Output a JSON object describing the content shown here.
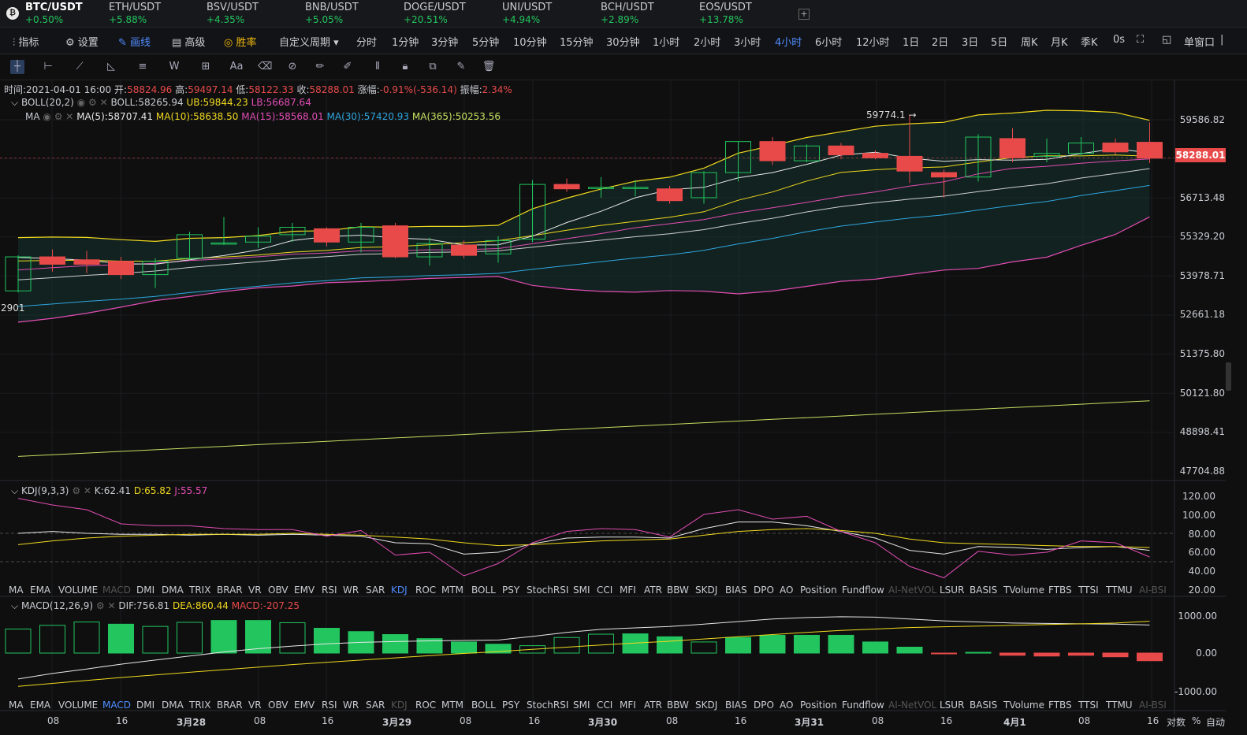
{
  "tickers": [
    {
      "symbol": "BTC/USDT",
      "change": "+0.50%",
      "active": true
    },
    {
      "symbol": "ETH/USDT",
      "change": "+5.88%"
    },
    {
      "symbol": "BSV/USDT",
      "change": "+4.35%"
    },
    {
      "symbol": "BNB/USDT",
      "change": "+5.05%"
    },
    {
      "symbol": "DOGE/USDT",
      "change": "+20.51%"
    },
    {
      "symbol": "UNI/USDT",
      "change": "+4.94%"
    },
    {
      "symbol": "BCH/USDT",
      "change": "+2.89%"
    },
    {
      "symbol": "EOS/USDT",
      "change": "+13.78%"
    }
  ],
  "toolbar": {
    "indicators": "指标",
    "settings": "设置",
    "draw": "画线",
    "advanced": "高级",
    "winrate": "胜率",
    "custom_period": "自定义周期",
    "periods": [
      "分时",
      "1分钟",
      "3分钟",
      "5分钟",
      "10分钟",
      "15分钟",
      "30分钟",
      "1小时",
      "2小时",
      "3小时",
      "4小时",
      "6小时",
      "12小时",
      "1日",
      "2日",
      "3日",
      "5日",
      "周K",
      "月K",
      "季K"
    ],
    "active_period": "4小时",
    "zero_s": "0s",
    "single_window": "单窗口"
  },
  "info": {
    "time_label": "时间:",
    "time": "2021-04-01 16:00",
    "open_label": "开:",
    "open": "58824.96",
    "high_label": "高:",
    "high": "59497.14",
    "low_label": "低:",
    "low": "58122.33",
    "close_label": "收:",
    "close": "58288.01",
    "chg_label": "涨幅:",
    "chg": "-0.91%(-536.14)",
    "amp_label": "振幅:",
    "amp": "2.34%"
  },
  "boll": {
    "name": "BOLL(20,2)",
    "mid": "BOLL:58265.94",
    "ub": "UB:59844.23",
    "lb": "LB:56687.64"
  },
  "ma": {
    "name": "MA",
    "ma5": "MA(5):58707.41",
    "ma10": "MA(10):58638.50",
    "ma15": "MA(15):58568.01",
    "ma30": "MA(30):57420.93",
    "ma365": "MA(365):50253.56"
  },
  "kdj": {
    "name": "KDJ(9,3,3)",
    "k": "K:62.41",
    "d": "D:65.82",
    "j": "J:55.57"
  },
  "macd": {
    "name": "MACD(12,26,9)",
    "dif": "DIF:756.81",
    "dea": "DEA:860.44",
    "macd": "MACD:-207.25"
  },
  "price_axis": [
    "59586.82",
    "56713.48",
    "55329.20",
    "53978.71",
    "52661.18",
    "51375.80",
    "50121.80",
    "48898.41",
    "47704.88"
  ],
  "current_price": "58288.01",
  "max_label": "59774.1 →",
  "left_label": "2901",
  "kdj_axis": [
    "120.00",
    "100.00",
    "80.00",
    "60.00",
    "40.00",
    "20.00"
  ],
  "macd_axis": [
    "1000.00",
    "0.00",
    "-1000.00"
  ],
  "indicator_tabs": [
    "MA",
    "EMA",
    "VOLUME",
    "MACD",
    "DMI",
    "DMA",
    "TRIX",
    "BRAR",
    "VR",
    "OBV",
    "EMV",
    "RSI",
    "WR",
    "SAR",
    "KDJ",
    "ROC",
    "MTM",
    "BOLL",
    "PSY",
    "StochRSI",
    "SMI",
    "CCI",
    "MFI",
    "ATR",
    "BBW",
    "SKDJ",
    "BIAS",
    "DPO",
    "AO",
    "Position",
    "Fundflow",
    "AI-NetVOL",
    "LSUR",
    "BASIS",
    "TVolume",
    "FTBS",
    "TTSI",
    "TTMU",
    "AI-BSI"
  ],
  "date_labels": [
    "08",
    "16",
    "3月28",
    "08",
    "16",
    "3月29",
    "08",
    "16",
    "3月30",
    "08",
    "16",
    "3月31",
    "08",
    "16",
    "4月1",
    "08",
    "16"
  ],
  "bottom_right": {
    "log": "对数",
    "pct": "%",
    "auto": "自动"
  },
  "colors": {
    "up": "#22c55e",
    "down": "#e84a4a",
    "ma5": "#e8e8e8",
    "ma10": "#f0d91e",
    "ma15": "#e24db3",
    "ma30": "#2fa6e0",
    "ma365": "#c5e05f"
  },
  "chart_data": {
    "type": "candlestick",
    "candles": [
      {
        "o": 53800,
        "h": 55000,
        "l": 53750,
        "c": 54950
      },
      {
        "o": 54950,
        "h": 55200,
        "l": 54450,
        "c": 54700
      },
      {
        "o": 54850,
        "h": 55150,
        "l": 54400,
        "c": 54700
      },
      {
        "o": 54800,
        "h": 54950,
        "l": 54200,
        "c": 54350
      },
      {
        "o": 54350,
        "h": 54900,
        "l": 53900,
        "c": 54800
      },
      {
        "o": 54900,
        "h": 55800,
        "l": 54850,
        "c": 55700
      },
      {
        "o": 55400,
        "h": 56300,
        "l": 55350,
        "c": 55420
      },
      {
        "o": 55450,
        "h": 55950,
        "l": 55250,
        "c": 55650
      },
      {
        "o": 55700,
        "h": 56100,
        "l": 55450,
        "c": 55950
      },
      {
        "o": 55900,
        "h": 55950,
        "l": 55300,
        "c": 55450
      },
      {
        "o": 55450,
        "h": 56100,
        "l": 55100,
        "c": 55950
      },
      {
        "o": 56000,
        "h": 56100,
        "l": 54900,
        "c": 54950
      },
      {
        "o": 54950,
        "h": 55600,
        "l": 54650,
        "c": 55400
      },
      {
        "o": 55350,
        "h": 55500,
        "l": 54900,
        "c": 55000
      },
      {
        "o": 55050,
        "h": 55650,
        "l": 54750,
        "c": 55500
      },
      {
        "o": 55550,
        "h": 57550,
        "l": 55450,
        "c": 57400
      },
      {
        "o": 57400,
        "h": 57600,
        "l": 57150,
        "c": 57250
      },
      {
        "o": 57300,
        "h": 57650,
        "l": 56950,
        "c": 57300
      },
      {
        "o": 57300,
        "h": 57550,
        "l": 57000,
        "c": 57300
      },
      {
        "o": 57250,
        "h": 57350,
        "l": 56750,
        "c": 56850
      },
      {
        "o": 56950,
        "h": 57850,
        "l": 56750,
        "c": 57800
      },
      {
        "o": 57800,
        "h": 58850,
        "l": 57500,
        "c": 58850
      },
      {
        "o": 58850,
        "h": 59000,
        "l": 58050,
        "c": 58200
      },
      {
        "o": 58200,
        "h": 58750,
        "l": 58150,
        "c": 58700
      },
      {
        "o": 58700,
        "h": 58800,
        "l": 58250,
        "c": 58400
      },
      {
        "o": 58450,
        "h": 58550,
        "l": 58250,
        "c": 58300
      },
      {
        "o": 58350,
        "h": 59750,
        "l": 57450,
        "c": 57850
      },
      {
        "o": 57800,
        "h": 57900,
        "l": 56950,
        "c": 57650
      },
      {
        "o": 57650,
        "h": 59100,
        "l": 57500,
        "c": 59000
      },
      {
        "o": 58950,
        "h": 59300,
        "l": 58150,
        "c": 58300
      },
      {
        "o": 58350,
        "h": 58950,
        "l": 58150,
        "c": 58450
      },
      {
        "o": 58450,
        "h": 59000,
        "l": 58350,
        "c": 58800
      },
      {
        "o": 58800,
        "h": 58950,
        "l": 58400,
        "c": 58500
      },
      {
        "o": 58825,
        "h": 59497,
        "l": 58122,
        "c": 58288
      }
    ],
    "macd_hist": [
      650,
      750,
      840,
      780,
      720,
      830,
      880,
      880,
      820,
      670,
      580,
      500,
      390,
      300,
      240,
      200,
      420,
      510,
      520,
      440,
      300,
      420,
      480,
      480,
      480,
      300,
      160,
      -20,
      20,
      -60,
      -80,
      -60,
      -100,
      -207
    ]
  }
}
